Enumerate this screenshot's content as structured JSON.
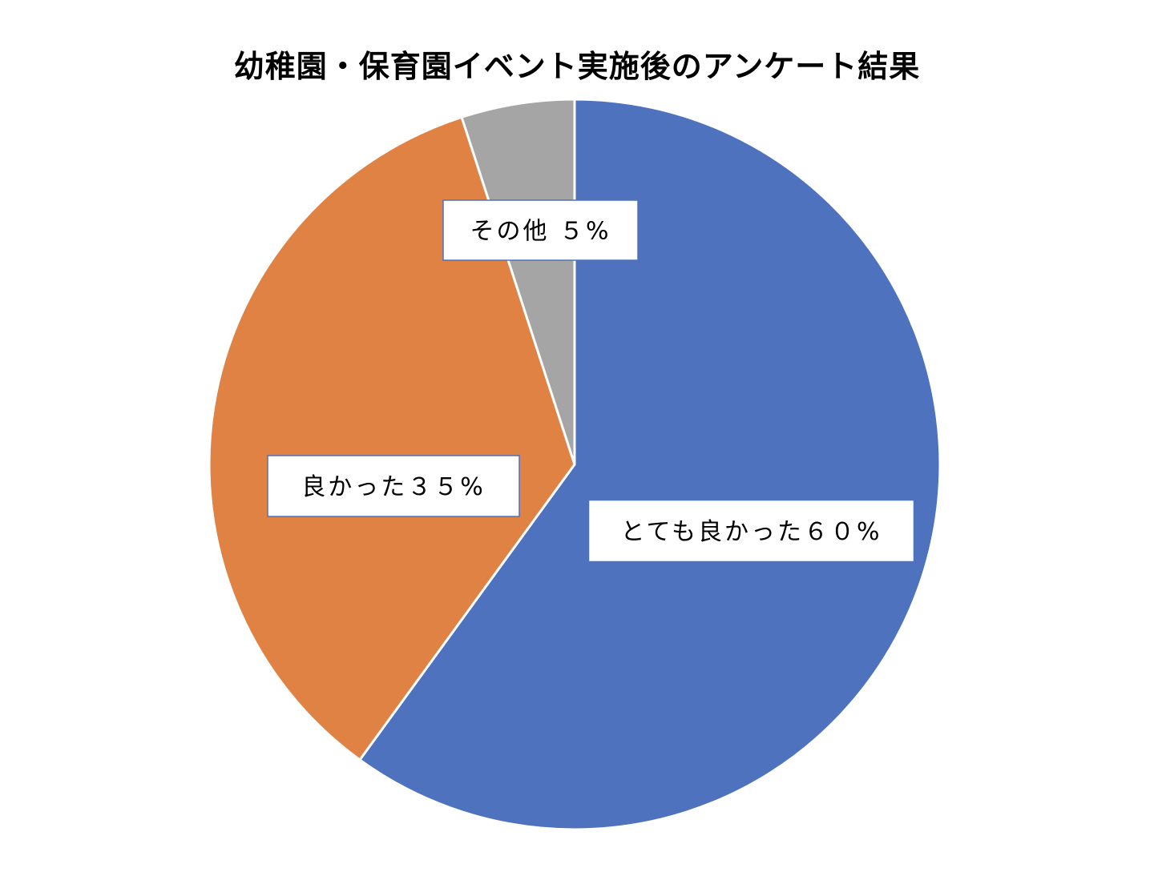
{
  "chart_data": {
    "type": "pie",
    "title": "幼稚園・保育園イベント実施後のアンケート結果",
    "categories": [
      "とても良かった",
      "良かった",
      "その他"
    ],
    "values": [
      60,
      35,
      5
    ],
    "data_labels": [
      "とても良かった６０%",
      "良かった３５%",
      "その他 ５%"
    ],
    "colors": [
      "#4E72BE",
      "#DF8244",
      "#A5A5A5"
    ],
    "start_angle_deg": 0,
    "direction": "clockwise",
    "legend": "none"
  }
}
